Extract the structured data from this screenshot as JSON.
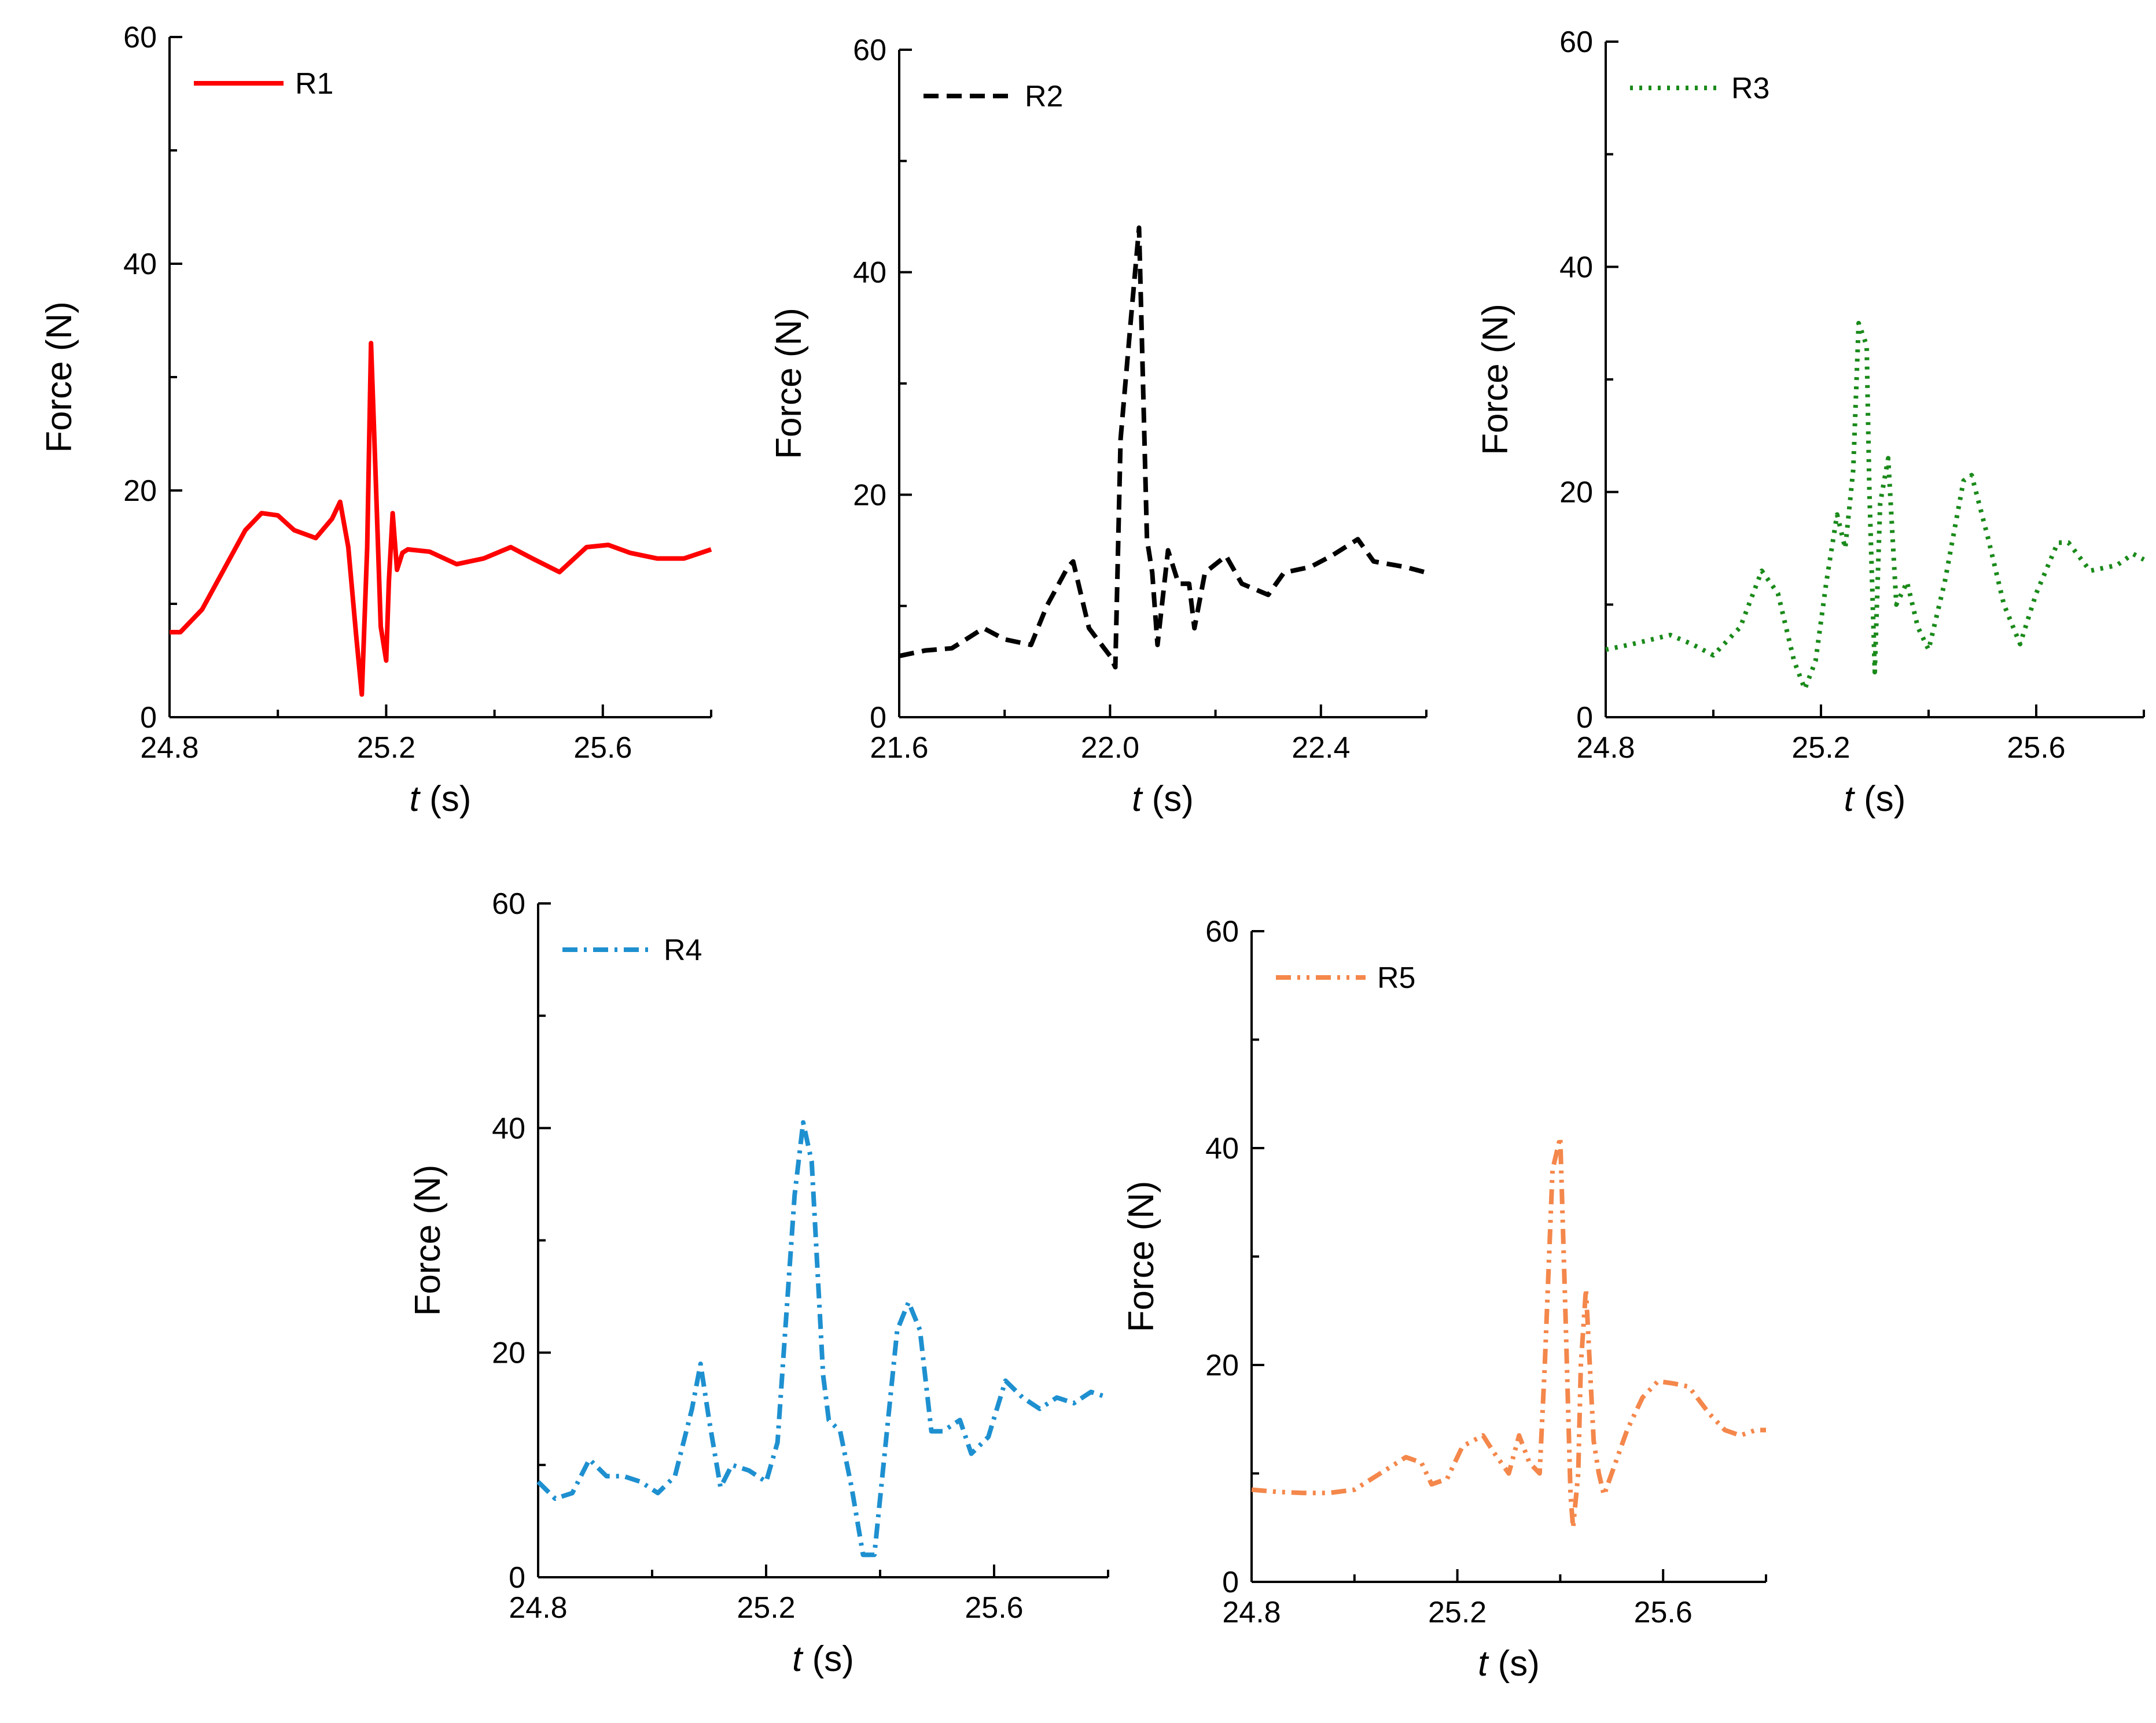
{
  "chart_data": [
    {
      "type": "line",
      "name": "R1",
      "color": "#ff0000",
      "dash": "solid",
      "xlabel": "t (s)",
      "ylabel": "Force (N)",
      "xlim": [
        24.8,
        25.8
      ],
      "ylim": [
        0,
        60
      ],
      "xticks": [
        "24.8",
        "25.2",
        "25.6"
      ],
      "yticks": [
        "0",
        "20",
        "40",
        "60"
      ],
      "legend": "R1",
      "x": [
        24.8,
        24.82,
        24.86,
        24.9,
        24.94,
        24.97,
        25.0,
        25.03,
        25.07,
        25.1,
        25.115,
        25.13,
        25.145,
        25.155,
        25.165,
        25.172,
        25.18,
        25.19,
        25.2,
        25.205,
        25.212,
        25.22,
        25.23,
        25.24,
        25.28,
        25.33,
        25.38,
        25.43,
        25.47,
        25.52,
        25.57,
        25.61,
        25.65,
        25.7,
        25.75,
        25.8
      ],
      "y": [
        7.5,
        7.5,
        9.5,
        13,
        16.5,
        18,
        17.8,
        16.5,
        15.8,
        17.5,
        19,
        15,
        7,
        2,
        15,
        33,
        22,
        8,
        5,
        12,
        18,
        13,
        14.5,
        14.8,
        14.6,
        13.5,
        14,
        15,
        14,
        12.8,
        15,
        15.2,
        14.5,
        14,
        14,
        14.8
      ]
    },
    {
      "type": "line",
      "name": "R2",
      "color": "#000000",
      "dash": "dashed",
      "xlabel": "t (s)",
      "ylabel": "Force (N)",
      "xlim": [
        21.6,
        22.6
      ],
      "ylim": [
        0,
        60
      ],
      "xticks": [
        "21.6",
        "22.0",
        "22.4"
      ],
      "yticks": [
        "0",
        "20",
        "40",
        "60"
      ],
      "legend": "R2",
      "x": [
        21.6,
        21.65,
        21.7,
        21.76,
        21.8,
        21.85,
        21.88,
        21.92,
        21.93,
        21.96,
        22.0,
        22.01,
        22.02,
        22.04,
        22.055,
        22.07,
        22.08,
        22.09,
        22.11,
        22.13,
        22.15,
        22.16,
        22.18,
        22.22,
        22.25,
        22.3,
        22.33,
        22.38,
        22.42,
        22.47,
        22.5,
        22.56,
        22.6
      ],
      "y": [
        5.5,
        6,
        6.2,
        8,
        7,
        6.5,
        10,
        13.5,
        14,
        8,
        5.5,
        4.5,
        25,
        36,
        44,
        16,
        13,
        6.5,
        15,
        12,
        12,
        8,
        13,
        14.5,
        12,
        11,
        13,
        13.5,
        14.5,
        16,
        14,
        13.5,
        13
      ]
    },
    {
      "type": "line",
      "name": "R3",
      "color": "#1a8a1a",
      "dash": "dotted",
      "xlabel": "t (s)",
      "ylabel": "Force (N)",
      "xlim": [
        24.8,
        25.8
      ],
      "ylim": [
        0,
        60
      ],
      "xticks": [
        "24.8",
        "25.2",
        "25.6"
      ],
      "yticks": [
        "0",
        "20",
        "40",
        "60"
      ],
      "legend": "R3",
      "x": [
        24.8,
        24.85,
        24.92,
        24.96,
        25.0,
        25.05,
        25.09,
        25.12,
        25.15,
        25.17,
        25.19,
        25.21,
        25.23,
        25.245,
        25.26,
        25.27,
        25.285,
        25.29,
        25.3,
        25.31,
        25.325,
        25.34,
        25.36,
        25.38,
        25.4,
        25.43,
        25.465,
        25.48,
        25.51,
        25.54,
        25.57,
        25.6,
        25.64,
        25.66,
        25.7,
        25.75,
        25.78,
        25.8
      ],
      "y": [
        6,
        6.5,
        7.3,
        6.5,
        5.5,
        8,
        13,
        11,
        5,
        2.5,
        5,
        12,
        18,
        15,
        22,
        35,
        33,
        20,
        4,
        19,
        23,
        10,
        12,
        8,
        6,
        12,
        21,
        21.5,
        16,
        10,
        6.5,
        11,
        15.5,
        15.5,
        13,
        13.5,
        14.5,
        14
      ]
    },
    {
      "type": "line",
      "name": "R4",
      "color": "#1e90d0",
      "dash": "dashdot",
      "xlabel": "t (s)",
      "ylabel": "Force (N)",
      "xlim": [
        24.8,
        25.8
      ],
      "ylim": [
        0,
        60
      ],
      "xticks": [
        "24.8",
        "25.2",
        "25.6"
      ],
      "yticks": [
        "0",
        "20",
        "40",
        "60"
      ],
      "legend": "R4",
      "x": [
        24.8,
        24.83,
        24.86,
        24.89,
        24.92,
        24.95,
        24.98,
        25.01,
        25.04,
        25.07,
        25.085,
        25.1,
        25.12,
        25.14,
        25.17,
        25.2,
        25.22,
        25.25,
        25.265,
        25.28,
        25.3,
        25.31,
        25.33,
        25.35,
        25.37,
        25.39,
        25.41,
        25.43,
        25.45,
        25.47,
        25.49,
        25.51,
        25.54,
        25.56,
        25.59,
        25.62,
        25.65,
        25.68,
        25.71,
        25.74,
        25.77,
        25.8
      ],
      "y": [
        8.5,
        7,
        7.5,
        10.5,
        9,
        9,
        8.5,
        7.5,
        9,
        15,
        19,
        14,
        8,
        10,
        9.5,
        8.5,
        12,
        34,
        40.5,
        37,
        18,
        14,
        13,
        8,
        2,
        2,
        12,
        22,
        24.5,
        22,
        13,
        13,
        14,
        11,
        12.5,
        17.5,
        16,
        15,
        16,
        15.5,
        16.5,
        16
      ]
    },
    {
      "type": "line",
      "name": "R5",
      "color": "#f4874b",
      "dash": "dashdotdot",
      "xlabel": "t (s)",
      "ylabel": "Force (N)",
      "xlim": [
        24.8,
        25.8
      ],
      "ylim": [
        0,
        60
      ],
      "xticks": [
        "24.8",
        "25.2",
        "25.6"
      ],
      "yticks": [
        "0",
        "20",
        "40",
        "60"
      ],
      "legend": "R5",
      "x": [
        24.8,
        24.85,
        24.9,
        24.95,
        25.0,
        25.05,
        25.1,
        25.13,
        25.15,
        25.18,
        25.21,
        25.25,
        25.27,
        25.3,
        25.32,
        25.34,
        25.36,
        25.37,
        25.385,
        25.4,
        25.41,
        25.42,
        25.425,
        25.435,
        25.44,
        25.45,
        25.465,
        25.475,
        25.485,
        25.5,
        25.53,
        25.56,
        25.59,
        25.62,
        25.65,
        25.69,
        25.72,
        25.75,
        25.78,
        25.8
      ],
      "y": [
        8.5,
        8.3,
        8.2,
        8.2,
        8.5,
        10,
        11.5,
        11,
        9,
        9.5,
        12.5,
        13.5,
        12,
        10,
        13.5,
        11,
        10,
        20,
        38,
        41,
        25,
        8,
        5,
        10,
        20,
        27,
        13,
        10,
        8,
        10,
        14,
        17,
        18.5,
        18.3,
        18,
        15.5,
        14,
        13.5,
        14,
        14
      ]
    }
  ]
}
